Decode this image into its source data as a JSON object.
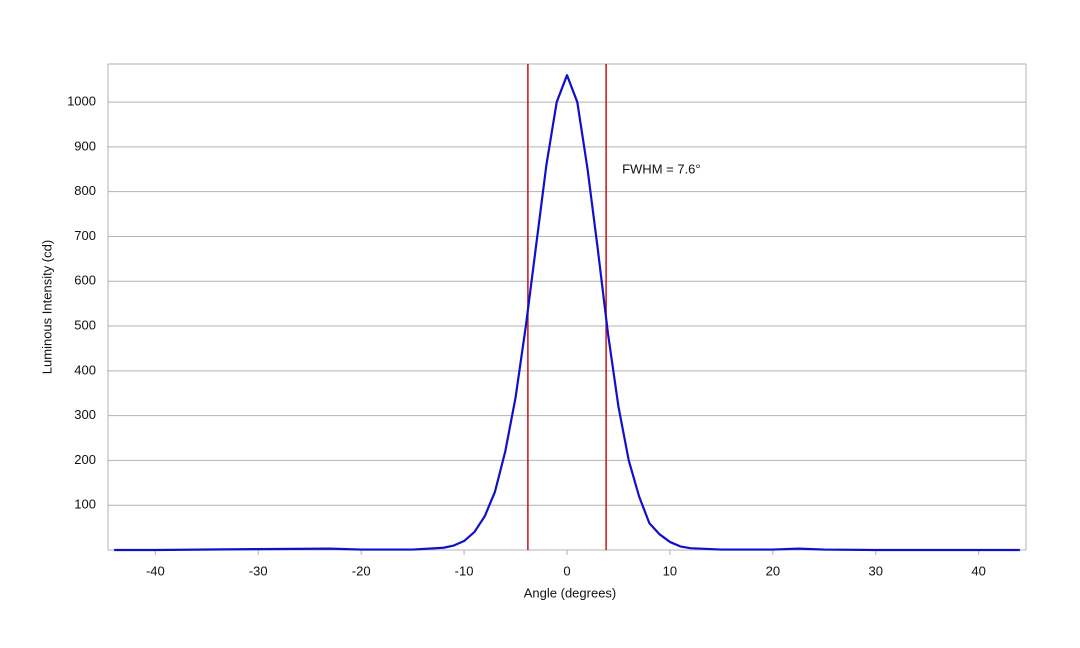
{
  "chart_data": {
    "type": "line",
    "x_label": "Angle (degrees)",
    "y_label": "Luminous Intensity (cd)",
    "x": [
      -44,
      -40,
      -30,
      -23,
      -20,
      -15,
      -12,
      -11,
      -10,
      -9,
      -8,
      -7,
      -6,
      -5,
      -4,
      -3,
      -2,
      -1,
      0,
      1,
      2,
      3,
      4,
      5,
      6,
      7,
      8,
      9,
      10,
      11,
      12,
      15,
      20,
      22.5,
      25,
      30,
      40,
      44
    ],
    "values": [
      0,
      0,
      2,
      3,
      1,
      1,
      5,
      10,
      20,
      40,
      75,
      130,
      220,
      340,
      500,
      680,
      860,
      1000,
      1060,
      1000,
      850,
      670,
      480,
      320,
      200,
      120,
      60,
      35,
      18,
      8,
      4,
      1,
      1,
      3,
      1,
      0,
      0,
      0
    ],
    "color": "#1010cc",
    "vlines": [
      -3.8,
      3.8
    ],
    "vline_color": "#cc1111",
    "annotation": "FWHM = 7.6°",
    "xlim": [
      -44.6,
      44.6
    ],
    "ylim": [
      0,
      1085
    ],
    "xticks": [
      -40,
      -30,
      -20,
      -10,
      0,
      10,
      20,
      30,
      40
    ],
    "yticks": [
      100,
      200,
      300,
      400,
      500,
      600,
      700,
      800,
      900,
      1000
    ],
    "grid": true
  }
}
